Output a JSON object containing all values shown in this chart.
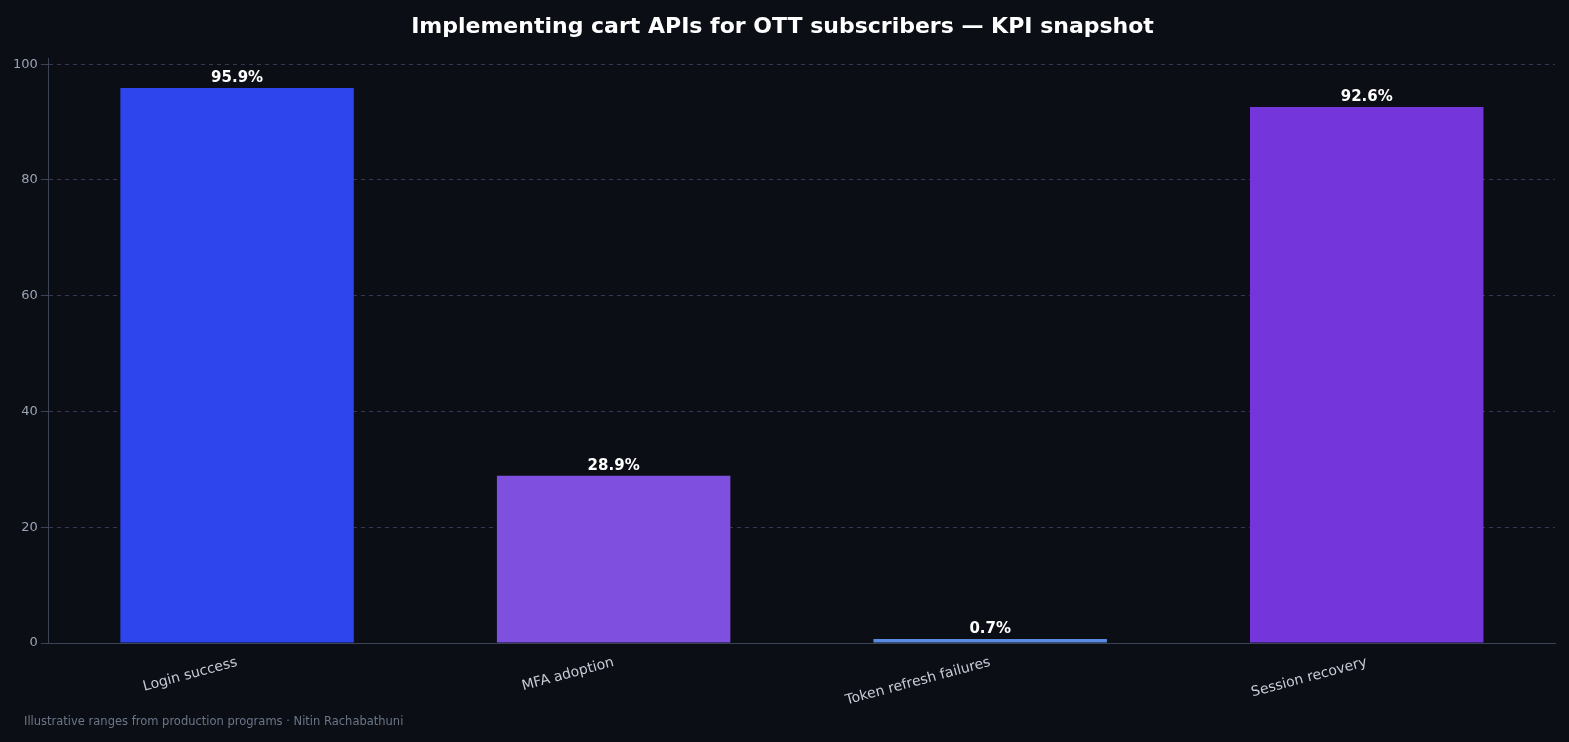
{
  "chart_data": {
    "type": "bar",
    "title": "Implementing cart APIs for OTT subscribers — KPI snapshot",
    "categories": [
      "Login success",
      "MFA adoption",
      "Token refresh failures",
      "Session recovery"
    ],
    "values": [
      95.9,
      28.9,
      0.7,
      92.6
    ],
    "colors": [
      "#2e44ec",
      "#7f4fdf",
      "#5b8be0",
      "#7436da"
    ],
    "value_labels": [
      "95.9%",
      "28.9%",
      "0.7%",
      "92.6%"
    ],
    "ylim": [
      0,
      101
    ],
    "yticks": [
      0,
      20,
      40,
      60,
      80,
      100
    ],
    "grid": "y",
    "legend": false,
    "annotations": [
      "Illustrative ranges from production programs · Nitin Rachabathuni"
    ]
  }
}
